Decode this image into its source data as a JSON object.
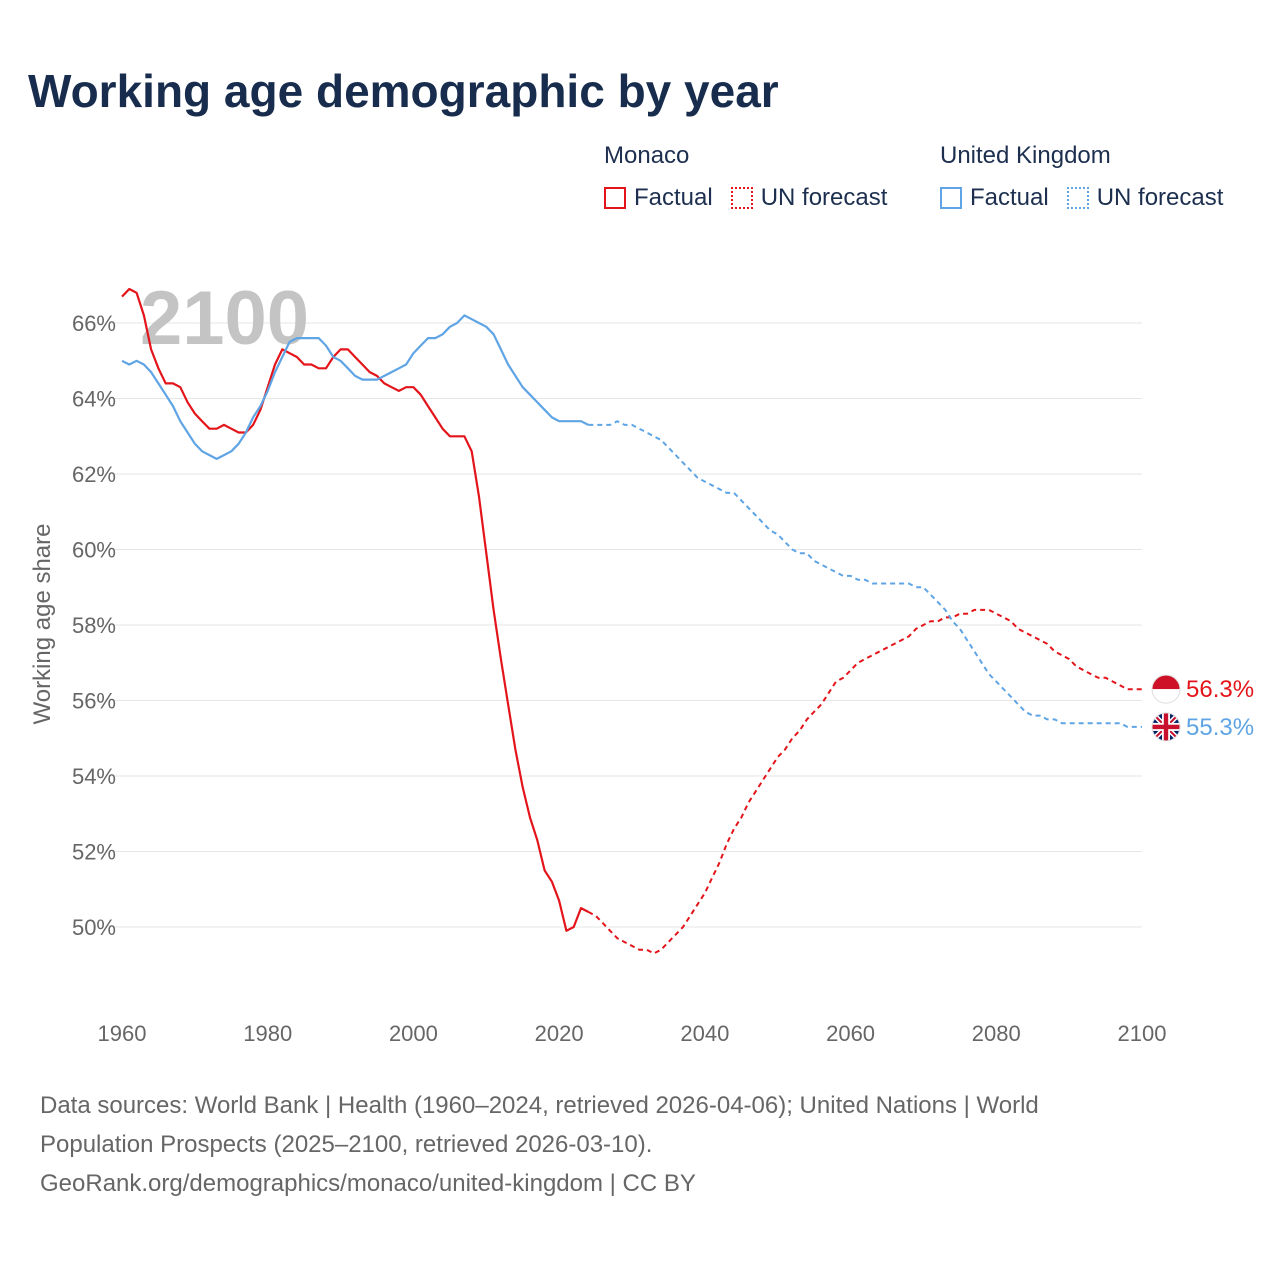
{
  "title": "Working age demographic by year",
  "legend": {
    "groups": [
      {
        "name": "Monaco",
        "color": "#e3151b",
        "items": [
          {
            "label": "Factual",
            "style": "solid"
          },
          {
            "label": "UN forecast",
            "style": "dotted"
          }
        ]
      },
      {
        "name": "United Kingdom",
        "color": "#5fa4e4",
        "items": [
          {
            "label": "Factual",
            "style": "solid"
          },
          {
            "label": "UN forecast",
            "style": "dotted"
          }
        ]
      }
    ]
  },
  "year_watermark": "2100",
  "chart_data": {
    "type": "line",
    "title": "Working age demographic by year",
    "xlabel": "",
    "ylabel": "Working age share",
    "xlim": [
      1960,
      2100
    ],
    "ylim": [
      48.6,
      67
    ],
    "x_ticks": [
      1960,
      1980,
      2000,
      2020,
      2040,
      2060,
      2080,
      2100
    ],
    "x_tick_labels": [
      "1960",
      "1980",
      "2000",
      "2020",
      "2040",
      "2060",
      "2080",
      "2100"
    ],
    "y_ticks": [
      50,
      52,
      54,
      56,
      58,
      60,
      62,
      64,
      66
    ],
    "y_tick_labels": [
      "50%",
      "52%",
      "54%",
      "56%",
      "58%",
      "60%",
      "62%",
      "64%",
      "66%"
    ],
    "grid": true,
    "series": [
      {
        "name": "Monaco",
        "color": "#e3151b",
        "factual": {
          "x": [
            1960,
            1961,
            1962,
            1963,
            1964,
            1965,
            1966,
            1967,
            1968,
            1969,
            1970,
            1971,
            1972,
            1973,
            1974,
            1975,
            1976,
            1977,
            1978,
            1979,
            1980,
            1981,
            1982,
            1983,
            1984,
            1985,
            1986,
            1987,
            1988,
            1989,
            1990,
            1991,
            1992,
            1993,
            1994,
            1995,
            1996,
            1997,
            1998,
            1999,
            2000,
            2001,
            2002,
            2003,
            2004,
            2005,
            2006,
            2007,
            2008,
            2009,
            2010,
            2011,
            2012,
            2013,
            2014,
            2015,
            2016,
            2017,
            2018,
            2019,
            2020,
            2021,
            2022,
            2023,
            2024
          ],
          "values": [
            66.7,
            66.9,
            66.8,
            66.2,
            65.3,
            64.8,
            64.4,
            64.4,
            64.3,
            63.9,
            63.6,
            63.4,
            63.2,
            63.2,
            63.3,
            63.2,
            63.1,
            63.1,
            63.3,
            63.7,
            64.3,
            64.9,
            65.3,
            65.2,
            65.1,
            64.9,
            64.9,
            64.8,
            64.8,
            65.1,
            65.3,
            65.3,
            65.1,
            64.9,
            64.7,
            64.6,
            64.4,
            64.3,
            64.2,
            64.3,
            64.3,
            64.1,
            63.8,
            63.5,
            63.2,
            63.0,
            63.0,
            63.0,
            62.6,
            61.4,
            59.9,
            58.4,
            57.1,
            55.9,
            54.7,
            53.7,
            52.9,
            52.3,
            51.5,
            51.2,
            50.7,
            49.9,
            50.0,
            50.5,
            50.4
          ],
          "end_value": 56.3
        },
        "forecast": {
          "x": [
            2024,
            2025,
            2026,
            2027,
            2028,
            2029,
            2030,
            2031,
            2032,
            2033,
            2034,
            2035,
            2036,
            2037,
            2038,
            2039,
            2040,
            2041,
            2042,
            2043,
            2044,
            2045,
            2046,
            2047,
            2048,
            2049,
            2050,
            2051,
            2052,
            2053,
            2054,
            2055,
            2056,
            2057,
            2058,
            2059,
            2060,
            2061,
            2062,
            2063,
            2064,
            2065,
            2066,
            2067,
            2068,
            2069,
            2070,
            2071,
            2072,
            2073,
            2074,
            2075,
            2076,
            2077,
            2078,
            2079,
            2080,
            2081,
            2082,
            2083,
            2084,
            2085,
            2086,
            2087,
            2088,
            2089,
            2090,
            2091,
            2092,
            2093,
            2094,
            2095,
            2096,
            2097,
            2098,
            2099,
            2100
          ],
          "values": [
            50.4,
            50.3,
            50.1,
            49.9,
            49.7,
            49.6,
            49.5,
            49.4,
            49.4,
            49.3,
            49.4,
            49.6,
            49.8,
            50.0,
            50.3,
            50.6,
            50.9,
            51.3,
            51.7,
            52.2,
            52.6,
            52.9,
            53.3,
            53.6,
            53.9,
            54.2,
            54.5,
            54.7,
            55.0,
            55.2,
            55.5,
            55.7,
            55.9,
            56.2,
            56.5,
            56.6,
            56.8,
            57.0,
            57.1,
            57.2,
            57.3,
            57.4,
            57.5,
            57.6,
            57.7,
            57.9,
            58.0,
            58.1,
            58.1,
            58.2,
            58.2,
            58.3,
            58.3,
            58.4,
            58.4,
            58.4,
            58.3,
            58.2,
            58.1,
            57.9,
            57.8,
            57.7,
            57.6,
            57.5,
            57.3,
            57.2,
            57.1,
            56.9,
            56.8,
            56.7,
            56.6,
            56.6,
            56.5,
            56.4,
            56.3,
            56.3,
            56.3
          ]
        },
        "end_label": "56.3%",
        "flag": "monaco-flag"
      },
      {
        "name": "United Kingdom",
        "color": "#5fa4e4",
        "factual": {
          "x": [
            1960,
            1961,
            1962,
            1963,
            1964,
            1965,
            1966,
            1967,
            1968,
            1969,
            1970,
            1971,
            1972,
            1973,
            1974,
            1975,
            1976,
            1977,
            1978,
            1979,
            1980,
            1981,
            1982,
            1983,
            1984,
            1985,
            1986,
            1987,
            1988,
            1989,
            1990,
            1991,
            1992,
            1993,
            1994,
            1995,
            1996,
            1997,
            1998,
            1999,
            2000,
            2001,
            2002,
            2003,
            2004,
            2005,
            2006,
            2007,
            2008,
            2009,
            2010,
            2011,
            2012,
            2013,
            2014,
            2015,
            2016,
            2017,
            2018,
            2019,
            2020,
            2021,
            2022,
            2023,
            2024
          ],
          "values": [
            65.0,
            64.9,
            65.0,
            64.9,
            64.7,
            64.4,
            64.1,
            63.8,
            63.4,
            63.1,
            62.8,
            62.6,
            62.5,
            62.4,
            62.5,
            62.6,
            62.8,
            63.1,
            63.5,
            63.8,
            64.2,
            64.7,
            65.1,
            65.5,
            65.6,
            65.6,
            65.6,
            65.6,
            65.4,
            65.1,
            65.0,
            64.8,
            64.6,
            64.5,
            64.5,
            64.5,
            64.6,
            64.7,
            64.8,
            64.9,
            65.2,
            65.4,
            65.6,
            65.6,
            65.7,
            65.9,
            66.0,
            66.2,
            66.1,
            66.0,
            65.9,
            65.7,
            65.3,
            64.9,
            64.6,
            64.3,
            64.1,
            63.9,
            63.7,
            63.5,
            63.4,
            63.4,
            63.4,
            63.4,
            63.3
          ],
          "end_value": 55.3
        },
        "forecast": {
          "x": [
            2024,
            2025,
            2026,
            2027,
            2028,
            2029,
            2030,
            2031,
            2032,
            2033,
            2034,
            2035,
            2036,
            2037,
            2038,
            2039,
            2040,
            2041,
            2042,
            2043,
            2044,
            2045,
            2046,
            2047,
            2048,
            2049,
            2050,
            2051,
            2052,
            2053,
            2054,
            2055,
            2056,
            2057,
            2058,
            2059,
            2060,
            2061,
            2062,
            2063,
            2064,
            2065,
            2066,
            2067,
            2068,
            2069,
            2070,
            2071,
            2072,
            2073,
            2074,
            2075,
            2076,
            2077,
            2078,
            2079,
            2080,
            2081,
            2082,
            2083,
            2084,
            2085,
            2086,
            2087,
            2088,
            2089,
            2090,
            2091,
            2092,
            2093,
            2094,
            2095,
            2096,
            2097,
            2098,
            2099,
            2100
          ],
          "values": [
            63.3,
            63.3,
            63.3,
            63.3,
            63.4,
            63.3,
            63.3,
            63.2,
            63.1,
            63.0,
            62.9,
            62.7,
            62.5,
            62.3,
            62.1,
            61.9,
            61.8,
            61.7,
            61.6,
            61.5,
            61.5,
            61.3,
            61.1,
            60.9,
            60.7,
            60.5,
            60.4,
            60.2,
            60.0,
            59.9,
            59.9,
            59.7,
            59.6,
            59.5,
            59.4,
            59.3,
            59.3,
            59.2,
            59.2,
            59.1,
            59.1,
            59.1,
            59.1,
            59.1,
            59.1,
            59.0,
            59.0,
            58.8,
            58.6,
            58.4,
            58.1,
            57.9,
            57.6,
            57.3,
            57.0,
            56.7,
            56.5,
            56.3,
            56.1,
            55.9,
            55.7,
            55.6,
            55.6,
            55.5,
            55.5,
            55.4,
            55.4,
            55.4,
            55.4,
            55.4,
            55.4,
            55.4,
            55.4,
            55.4,
            55.3,
            55.3,
            55.3
          ]
        },
        "end_label": "55.3%",
        "flag": "uk-flag"
      }
    ]
  },
  "source": {
    "line1": "Data sources: World Bank | Health (1960–2024, retrieved 2026-04-06); United Nations | World",
    "line2": "Population Prospects (2025–2100, retrieved 2026-03-10).",
    "line3": "GeoRank.org/demographics/monaco/united-kingdom | CC BY"
  }
}
